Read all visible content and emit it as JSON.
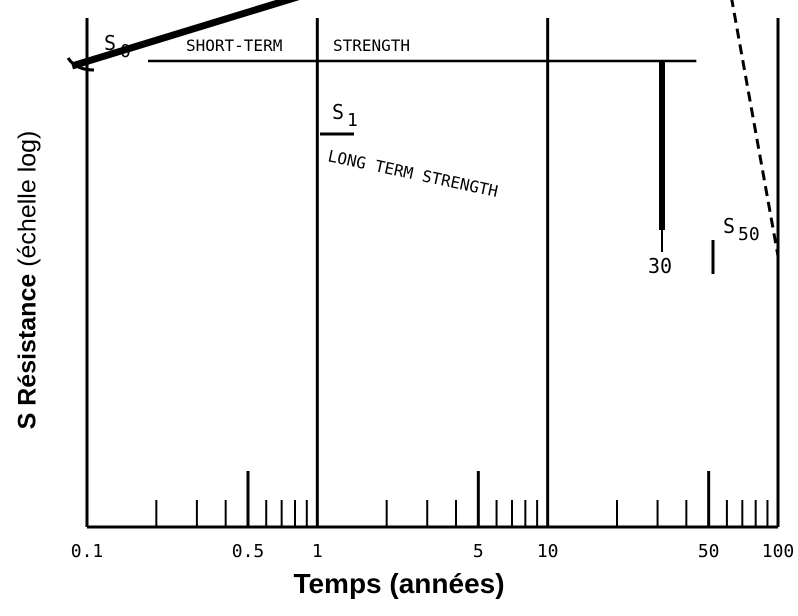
{
  "chart_data": {
    "type": "line",
    "xscale": "log",
    "xlim": [
      0.1,
      100
    ],
    "xlabel": "Temps (années)",
    "ylabel_bold": "S Résistance",
    "ylabel_rest": " (échelle log)",
    "major_ticks": [
      0.1,
      1,
      10,
      100
    ],
    "minor_ticks": [
      0.2,
      0.3,
      0.4,
      0.5,
      0.6,
      0.7,
      0.8,
      0.9,
      2,
      3,
      4,
      5,
      6,
      7,
      8,
      9,
      20,
      30,
      40,
      50,
      60,
      70,
      80,
      90
    ],
    "tick_labels": [
      {
        "x": 0.1,
        "text": "0.1"
      },
      {
        "x": 0.5,
        "text": "0.5"
      },
      {
        "x": 1,
        "text": "1"
      },
      {
        "x": 5,
        "text": "5"
      },
      {
        "x": 10,
        "text": "10"
      },
      {
        "x": 50,
        "text": "50"
      },
      {
        "x": 100,
        "text": "100"
      }
    ],
    "series": [
      {
        "name": "SHORT-TERM STRENGTH",
        "style": "thin",
        "x": [
          0.1,
          40
        ],
        "y": [
          1.0,
          1.0
        ]
      },
      {
        "name": "LONG TERM STRENGTH",
        "style": "thick",
        "x": [
          0.1,
          50
        ],
        "y": [
          1.0,
          0.7
        ]
      }
    ],
    "annotations": [
      {
        "text": "S",
        "sub": "0",
        "x": 0.1
      },
      {
        "text": "S",
        "sub": "1",
        "x": 1
      },
      {
        "text": "S",
        "sub": "50",
        "x": 50
      },
      {
        "text": "30",
        "x": 30
      }
    ],
    "grid": false
  }
}
